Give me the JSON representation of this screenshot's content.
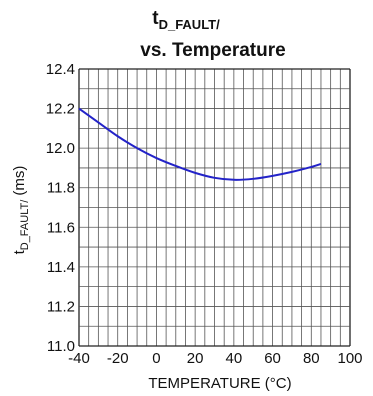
{
  "chart_data": {
    "type": "line",
    "title_main": "t",
    "title_sub": "D_FAULT/",
    "title_line2": "vs. Temperature",
    "xlabel": "TEMPERATURE (°C)",
    "ylabel_main": "t",
    "ylabel_sub": "D_FAULT/",
    "ylabel_unit": " (ms)",
    "xlim": [
      -40,
      100
    ],
    "ylim": [
      11.0,
      12.4
    ],
    "x_ticks": [
      -40,
      -20,
      0,
      20,
      40,
      60,
      80,
      100
    ],
    "x_tick_labels": [
      "-40",
      "-20",
      "0",
      "20",
      "40",
      "60",
      "80",
      "100"
    ],
    "y_ticks": [
      11.0,
      11.2,
      11.4,
      11.6,
      11.8,
      12.0,
      12.2,
      12.4
    ],
    "y_tick_labels": [
      "11.0",
      "11.2",
      "11.4",
      "11.6",
      "11.8",
      "12.0",
      "12.2",
      "12.4"
    ],
    "grid": true,
    "series": [
      {
        "color": "#2323c8",
        "x": [
          -40,
          -30,
          -20,
          -10,
          0,
          10,
          20,
          30,
          40,
          50,
          60,
          70,
          80,
          85
        ],
        "y": [
          12.2,
          12.13,
          12.06,
          12.0,
          11.95,
          11.91,
          11.875,
          11.85,
          11.84,
          11.845,
          11.86,
          11.88,
          11.905,
          11.92
        ]
      }
    ]
  }
}
